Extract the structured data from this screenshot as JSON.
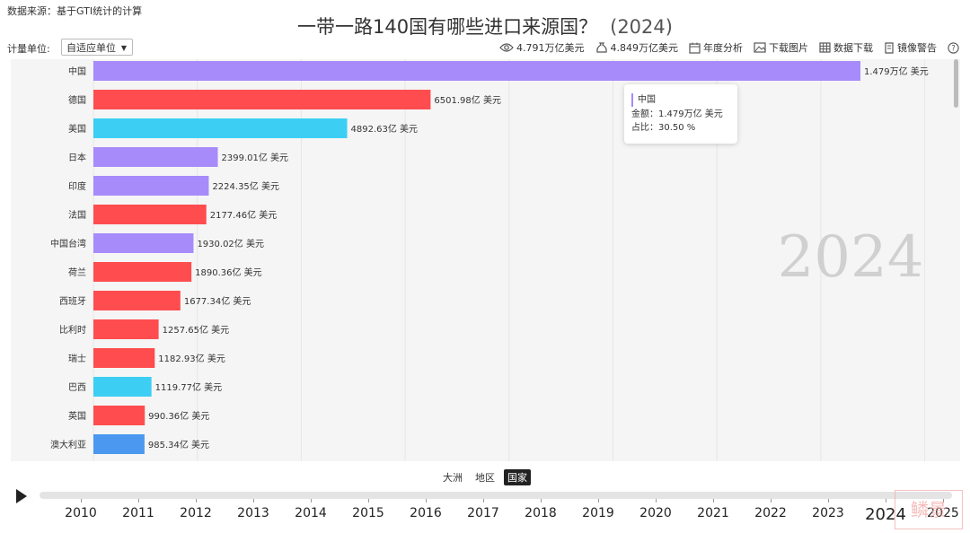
{
  "header": {
    "source": "数据来源：基于GTI统计的计算",
    "title": "一带一路140国有哪些进口来源国？",
    "title_year": "(2024)"
  },
  "controls": {
    "unit_label": "计量单位:",
    "unit_value": "自适应单位",
    "toolbar": [
      {
        "icon": "eye-icon",
        "label": "4.791万亿美元"
      },
      {
        "icon": "money-bag-icon",
        "label": "4.849万亿美元"
      },
      {
        "icon": "calendar-icon",
        "label": "年度分析"
      },
      {
        "icon": "image-icon",
        "label": "下载图片"
      },
      {
        "icon": "table-icon",
        "label": "数据下载"
      },
      {
        "icon": "warning-doc-icon",
        "label": "镜像警告"
      },
      {
        "icon": "help-icon",
        "label": ""
      }
    ]
  },
  "chart_data": {
    "type": "bar",
    "orientation": "horizontal",
    "year_watermark": "2024",
    "unit": "亿美元",
    "grid": true,
    "categories": [
      "中国",
      "德国",
      "美国",
      "日本",
      "印度",
      "法国",
      "中国台湾",
      "荷兰",
      "西班牙",
      "比利时",
      "瑞士",
      "巴西",
      "英国",
      "澳大利亚"
    ],
    "values": [
      14790,
      6501.98,
      4892.63,
      2399.01,
      2224.35,
      2177.46,
      1930.02,
      1890.36,
      1677.34,
      1257.65,
      1182.93,
      1119.77,
      990.36,
      985.34
    ],
    "value_labels": [
      "1.479万亿 美元",
      "6501.98亿 美元",
      "4892.63亿 美元",
      "2399.01亿 美元",
      "2224.35亿 美元",
      "2177.46亿 美元",
      "1930.02亿 美元",
      "1890.36亿 美元",
      "1677.34亿 美元",
      "1257.65亿 美元",
      "1182.93亿 美元",
      "1119.77亿 美元",
      "990.36亿 美元",
      "985.34亿 美元"
    ],
    "colors": [
      "#a78bfa",
      "#ff4d4f",
      "#3ccff3",
      "#a78bfa",
      "#a78bfa",
      "#ff4d4f",
      "#a78bfa",
      "#ff4d4f",
      "#ff4d4f",
      "#ff4d4f",
      "#ff4d4f",
      "#3ccff3",
      "#ff4d4f",
      "#4a98f0"
    ]
  },
  "tooltip": {
    "name": "中国",
    "amount": "金额：1.479万亿 美元",
    "share": "占比：30.50 %"
  },
  "tabs": [
    "大洲",
    "地区",
    "国家"
  ],
  "active_tab": "国家",
  "timeline": {
    "years": [
      "2010",
      "2011",
      "2012",
      "2013",
      "2014",
      "2015",
      "2016",
      "2017",
      "2018",
      "2019",
      "2020",
      "2021",
      "2022",
      "2023",
      "2024",
      "2025"
    ],
    "current": "2024"
  },
  "watermark": "鳞景"
}
